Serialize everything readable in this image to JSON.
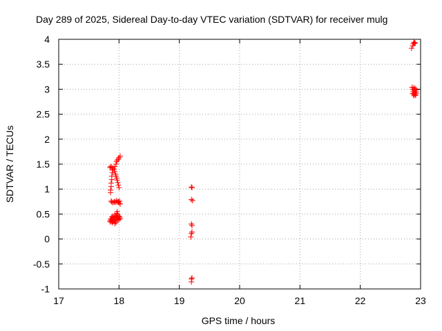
{
  "chart_data": {
    "type": "scatter",
    "title": "Day 289 of 2025, Sidereal Day-to-day VTEC variation (SDTVAR) for receiver mulg",
    "xlabel": "GPS time / hours",
    "ylabel": "SDTVAR / TECUs",
    "xlim": [
      17,
      23
    ],
    "ylim": [
      -1,
      4
    ],
    "xticks": [
      "17",
      "18",
      "19",
      "20",
      "21",
      "22",
      "23"
    ],
    "yticks": [
      "-1",
      "-0.5",
      "0",
      "0.5",
      "1",
      "1.5",
      "2",
      "2.5",
      "3",
      "3.5",
      "4"
    ],
    "grid": true,
    "series": [
      {
        "name": "SDTVAR",
        "color": "#ff0000",
        "marker": "plus",
        "points": [
          [
            17.86,
            0.93
          ],
          [
            17.86,
            0.98
          ],
          [
            17.87,
            1.05
          ],
          [
            17.87,
            1.12
          ],
          [
            17.88,
            1.19
          ],
          [
            17.88,
            1.26
          ],
          [
            17.89,
            1.33
          ],
          [
            17.89,
            1.38
          ],
          [
            17.85,
            1.43
          ],
          [
            17.86,
            1.45
          ],
          [
            17.88,
            1.44
          ],
          [
            17.9,
            1.42
          ],
          [
            17.92,
            1.4
          ],
          [
            17.93,
            1.35
          ],
          [
            17.94,
            1.3
          ],
          [
            17.95,
            1.26
          ],
          [
            17.96,
            1.22
          ],
          [
            17.97,
            1.18
          ],
          [
            17.98,
            1.13
          ],
          [
            17.99,
            1.08
          ],
          [
            18.0,
            1.03
          ],
          [
            17.93,
            1.45
          ],
          [
            17.95,
            1.5
          ],
          [
            17.96,
            1.55
          ],
          [
            17.97,
            1.58
          ],
          [
            17.99,
            1.6
          ],
          [
            18.0,
            1.63
          ],
          [
            18.02,
            1.66
          ],
          [
            17.87,
            0.76
          ],
          [
            17.88,
            0.74
          ],
          [
            17.9,
            0.73
          ],
          [
            17.92,
            0.74
          ],
          [
            17.93,
            0.75
          ],
          [
            17.95,
            0.73
          ],
          [
            17.96,
            0.77
          ],
          [
            17.98,
            0.74
          ],
          [
            17.99,
            0.75
          ],
          [
            18.0,
            0.72
          ],
          [
            18.02,
            0.7
          ],
          [
            18.01,
            0.76
          ],
          [
            17.85,
            0.36
          ],
          [
            17.86,
            0.4
          ],
          [
            17.86,
            0.34
          ],
          [
            17.87,
            0.38
          ],
          [
            17.88,
            0.44
          ],
          [
            17.88,
            0.36
          ],
          [
            17.89,
            0.41
          ],
          [
            17.9,
            0.46
          ],
          [
            17.9,
            0.35
          ],
          [
            17.91,
            0.39
          ],
          [
            17.92,
            0.43
          ],
          [
            17.92,
            0.37
          ],
          [
            17.93,
            0.48
          ],
          [
            17.94,
            0.41
          ],
          [
            17.94,
            0.36
          ],
          [
            17.95,
            0.45
          ],
          [
            17.96,
            0.51
          ],
          [
            17.96,
            0.4
          ],
          [
            17.97,
            0.55
          ],
          [
            17.97,
            0.44
          ],
          [
            17.98,
            0.38
          ],
          [
            17.98,
            0.49
          ],
          [
            17.99,
            0.42
          ],
          [
            18.0,
            0.46
          ],
          [
            18.0,
            0.39
          ],
          [
            18.01,
            0.44
          ],
          [
            18.02,
            0.41
          ],
          [
            17.95,
            0.33
          ],
          [
            17.93,
            0.31
          ],
          [
            17.89,
            0.33
          ],
          [
            19.2,
            1.04
          ],
          [
            19.21,
            1.03
          ],
          [
            19.2,
            0.79
          ],
          [
            19.22,
            0.77
          ],
          [
            19.2,
            0.3
          ],
          [
            19.21,
            0.27
          ],
          [
            19.2,
            0.11
          ],
          [
            19.21,
            0.14
          ],
          [
            19.19,
            0.04
          ],
          [
            19.21,
            -0.78
          ],
          [
            19.2,
            -0.8
          ],
          [
            19.2,
            -0.86
          ],
          [
            22.85,
            3.82
          ],
          [
            22.87,
            3.87
          ],
          [
            22.88,
            3.91
          ],
          [
            22.9,
            3.93
          ],
          [
            22.91,
            3.92
          ],
          [
            22.89,
            3.94
          ],
          [
            22.86,
            3.04
          ],
          [
            22.87,
            3.0
          ],
          [
            22.88,
            2.96
          ],
          [
            22.88,
            2.9
          ],
          [
            22.89,
            3.03
          ],
          [
            22.89,
            2.87
          ],
          [
            22.9,
            2.98
          ],
          [
            22.9,
            2.93
          ],
          [
            22.91,
            2.89
          ],
          [
            22.91,
            3.01
          ],
          [
            22.92,
            2.95
          ],
          [
            22.92,
            2.88
          ],
          [
            22.93,
            2.99
          ],
          [
            22.87,
            2.92
          ],
          [
            22.93,
            2.92
          ]
        ]
      }
    ]
  }
}
